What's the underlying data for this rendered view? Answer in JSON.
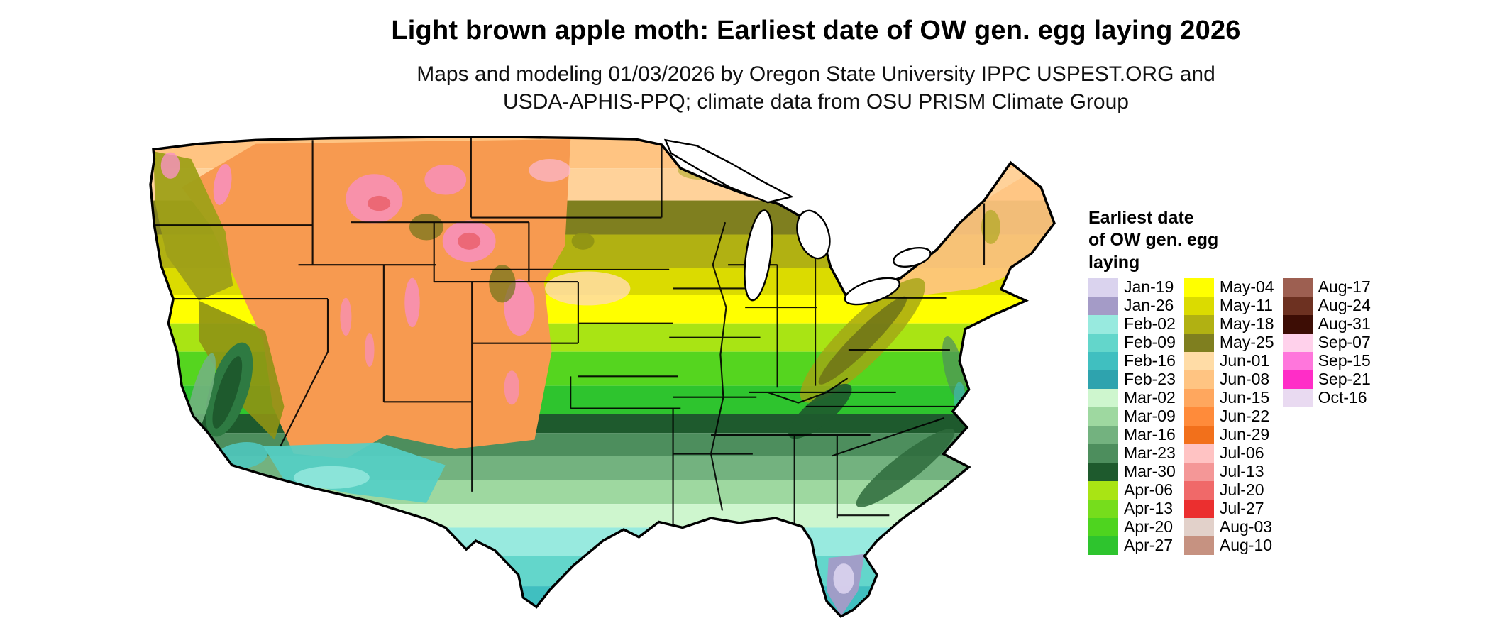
{
  "header": {
    "title": "Light brown apple moth: Earliest date of OW gen. egg laying 2026",
    "subtitle_line1": "Maps and modeling 01/03/2026 by Oregon State University IPPC USPEST.ORG and",
    "subtitle_line2": "USDA-APHIS-PPQ; climate data from OSU PRISM Climate Group"
  },
  "legend": {
    "title": "Earliest date\nof OW gen. egg\nlaying",
    "columns": [
      [
        {
          "label": "Jan-19",
          "color": "#DAD3EE"
        },
        {
          "label": "Jan-26",
          "color": "#A49BC7"
        },
        {
          "label": "Feb-02",
          "color": "#98EADF"
        },
        {
          "label": "Feb-09",
          "color": "#63D6CB"
        },
        {
          "label": "Feb-16",
          "color": "#40BFC0"
        },
        {
          "label": "Feb-23",
          "color": "#2EA3AE"
        },
        {
          "label": "Mar-02",
          "color": "#CEF6CE"
        },
        {
          "label": "Mar-09",
          "color": "#9ED8A0"
        },
        {
          "label": "Mar-16",
          "color": "#73B27F"
        },
        {
          "label": "Mar-23",
          "color": "#4D8E5D"
        },
        {
          "label": "Mar-30",
          "color": "#1E5A2D"
        },
        {
          "label": "Apr-06",
          "color": "#A9E414"
        },
        {
          "label": "Apr-13",
          "color": "#76DD1C"
        },
        {
          "label": "Apr-20",
          "color": "#4ED41F"
        },
        {
          "label": "Apr-27",
          "color": "#2EC42E"
        }
      ],
      [
        {
          "label": "May-04",
          "color": "#FFFF00"
        },
        {
          "label": "May-11",
          "color": "#DBDB00"
        },
        {
          "label": "May-18",
          "color": "#B1B112"
        },
        {
          "label": "May-25",
          "color": "#7F7F1F"
        },
        {
          "label": "Jun-01",
          "color": "#FFDCA6"
        },
        {
          "label": "Jun-08",
          "color": "#FFC482"
        },
        {
          "label": "Jun-15",
          "color": "#FFA75E"
        },
        {
          "label": "Jun-22",
          "color": "#FF8B3A"
        },
        {
          "label": "Jun-29",
          "color": "#F2701B"
        },
        {
          "label": "Jul-06",
          "color": "#FFC3C3"
        },
        {
          "label": "Jul-13",
          "color": "#F49797"
        },
        {
          "label": "Jul-20",
          "color": "#F06969"
        },
        {
          "label": "Jul-27",
          "color": "#EB2F2F"
        },
        {
          "label": "Aug-03",
          "color": "#E2D1CA"
        },
        {
          "label": "Aug-10",
          "color": "#C69281"
        }
      ],
      [
        {
          "label": "Aug-17",
          "color": "#9D5F51"
        },
        {
          "label": "Aug-24",
          "color": "#6D3121"
        },
        {
          "label": "Aug-31",
          "color": "#3D0D05"
        },
        {
          "label": "Sep-07",
          "color": "#FFD1EB"
        },
        {
          "label": "Sep-15",
          "color": "#FF76DC"
        },
        {
          "label": "Sep-21",
          "color": "#FF2DC7"
        },
        {
          "label": "Oct-16",
          "color": "#E9DAF1"
        }
      ]
    ]
  },
  "map": {
    "colors": {
      "border": "#000000",
      "lakes": "#FFFFFF",
      "background": "#FFFFFF"
    },
    "bands": [
      {
        "color": "#FFC482",
        "from": 0,
        "to": 58
      },
      {
        "color": "#FFD29A",
        "from": 58,
        "to": 92
      },
      {
        "color": "#7F7F1F",
        "from": 92,
        "to": 128
      },
      {
        "color": "#B1B112",
        "from": 128,
        "to": 163
      },
      {
        "color": "#DBDB00",
        "from": 163,
        "to": 192
      },
      {
        "color": "#FFFF00",
        "from": 192,
        "to": 222
      },
      {
        "color": "#A9E414",
        "from": 222,
        "to": 252
      },
      {
        "color": "#55D51F",
        "from": 252,
        "to": 288
      },
      {
        "color": "#2EC42E",
        "from": 288,
        "to": 318
      },
      {
        "color": "#1E5A2D",
        "from": 318,
        "to": 338
      },
      {
        "color": "#4D8E5D",
        "from": 338,
        "to": 362
      },
      {
        "color": "#73B27F",
        "from": 362,
        "to": 388
      },
      {
        "color": "#9ED8A0",
        "from": 388,
        "to": 413
      },
      {
        "color": "#CEF6CE",
        "from": 413,
        "to": 438
      },
      {
        "color": "#98EADF",
        "from": 438,
        "to": 468
      },
      {
        "color": "#63D6CB",
        "from": 468,
        "to": 500
      },
      {
        "color": "#40BFC0",
        "from": 500,
        "to": 545
      }
    ]
  }
}
